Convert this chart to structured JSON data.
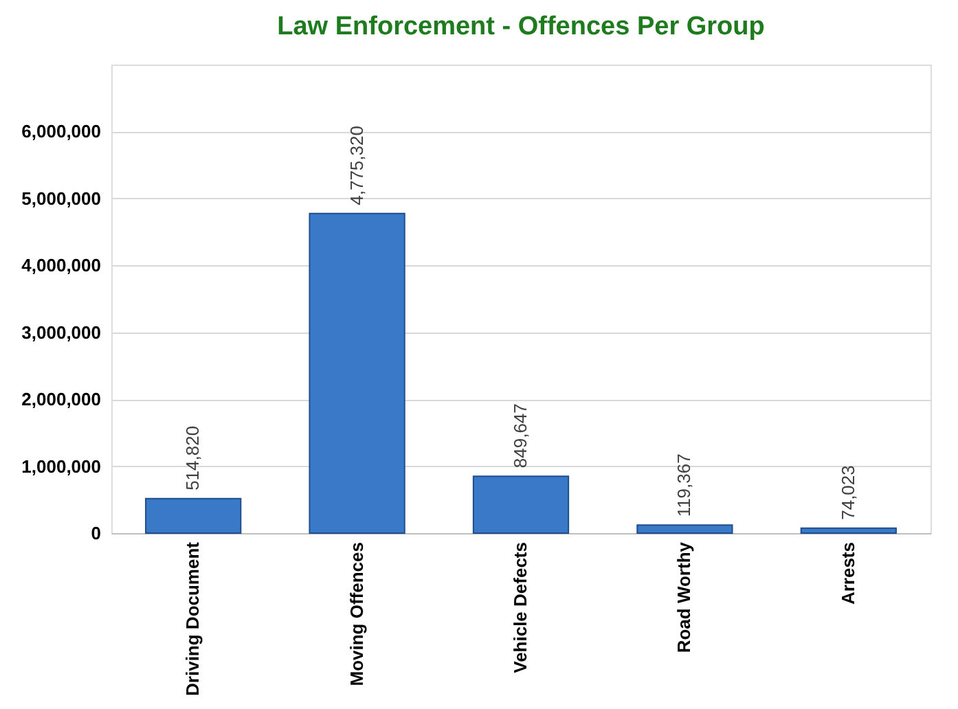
{
  "chart_data": {
    "type": "bar",
    "title": "Law Enforcement - Offences Per Group",
    "categories": [
      "Driving Document",
      "Moving Offences",
      "Vehicle Defects",
      "Road Worthy",
      "Arrests"
    ],
    "values": [
      514820,
      4775320,
      849647,
      119367,
      74023
    ],
    "value_labels": [
      "514,820",
      "4,775,320",
      "849,647",
      "119,367",
      "74,023"
    ],
    "color": "#3a78c8",
    "ylim": [
      0,
      7000000
    ],
    "yticks": [
      0,
      {
        "value": 1000000,
        "label": "1,000,000"
      },
      {
        "value": 2000000,
        "label": "2,000,000"
      },
      {
        "value": 3000000,
        "label": "3,000,000"
      },
      {
        "value": 4000000,
        "label": "4,000,000"
      },
      {
        "value": 5000000,
        "label": "5,000,000"
      },
      {
        "value": 6000000,
        "label": "6,000,000"
      }
    ],
    "grid": "y"
  }
}
